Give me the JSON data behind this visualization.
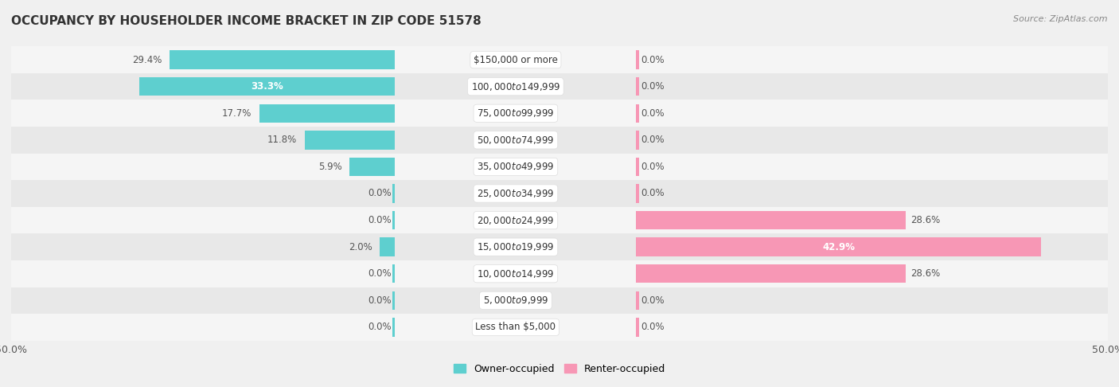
{
  "title": "OCCUPANCY BY HOUSEHOLDER INCOME BRACKET IN ZIP CODE 51578",
  "source": "Source: ZipAtlas.com",
  "categories": [
    "Less than $5,000",
    "$5,000 to $9,999",
    "$10,000 to $14,999",
    "$15,000 to $19,999",
    "$20,000 to $24,999",
    "$25,000 to $34,999",
    "$35,000 to $49,999",
    "$50,000 to $74,999",
    "$75,000 to $99,999",
    "$100,000 to $149,999",
    "$150,000 or more"
  ],
  "owner_values": [
    0.0,
    0.0,
    0.0,
    2.0,
    0.0,
    0.0,
    5.9,
    11.8,
    17.7,
    33.3,
    29.4
  ],
  "renter_values": [
    0.0,
    0.0,
    28.6,
    42.9,
    28.6,
    0.0,
    0.0,
    0.0,
    0.0,
    0.0,
    0.0
  ],
  "owner_color": "#5ecfcf",
  "renter_color": "#f797b5",
  "axis_limit": 50.0,
  "background_color": "#f0f0f0",
  "row_color_odd": "#e8e8e8",
  "row_color_even": "#f5f5f5",
  "title_fontsize": 11,
  "label_fontsize": 8.5,
  "tick_fontsize": 9,
  "legend_fontsize": 9,
  "source_fontsize": 8,
  "value_fontsize": 8.5
}
